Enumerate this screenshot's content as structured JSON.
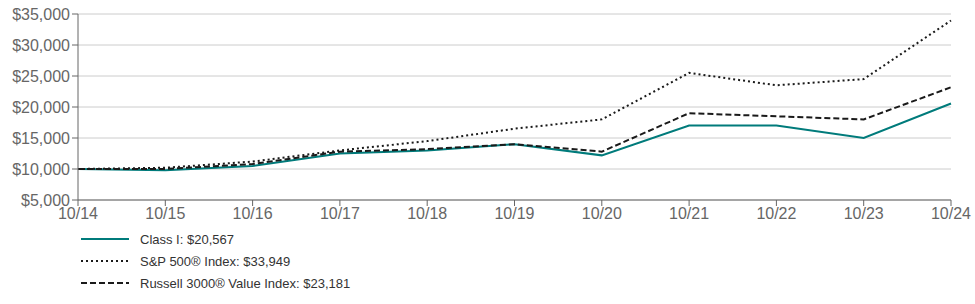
{
  "chart_data": {
    "type": "line",
    "categories": [
      "10/14",
      "10/15",
      "10/16",
      "10/17",
      "10/18",
      "10/19",
      "10/20",
      "10/21",
      "10/22",
      "10/23",
      "10/24"
    ],
    "series": [
      {
        "name": "Class I: $20,567",
        "color": "#007b7b",
        "line_style": "solid",
        "values": [
          10000,
          9800,
          10500,
          12500,
          13000,
          14000,
          12200,
          17000,
          17000,
          15000,
          20567
        ]
      },
      {
        "name": "S&P 500® Index: $33,949",
        "color": "#1a1a1a",
        "line_style": "dotted",
        "values": [
          10000,
          10200,
          11200,
          13000,
          14500,
          16500,
          18000,
          25500,
          23500,
          24500,
          33949
        ]
      },
      {
        "name": "Russell 3000® Value Index: $23,181",
        "color": "#1a1a1a",
        "line_style": "dashed",
        "values": [
          10000,
          10000,
          10800,
          12800,
          13200,
          14000,
          12800,
          19000,
          18500,
          18000,
          23181
        ]
      }
    ],
    "ylim": [
      5000,
      35000
    ],
    "yticks": [
      {
        "value": 5000,
        "label": "$5,000"
      },
      {
        "value": 10000,
        "label": "$10,000"
      },
      {
        "value": 15000,
        "label": "$15,000"
      },
      {
        "value": 20000,
        "label": "$20,000"
      },
      {
        "value": 25000,
        "label": "$25,000"
      },
      {
        "value": 30000,
        "label": "$30,000"
      },
      {
        "value": 35000,
        "label": "$35,000"
      }
    ],
    "grid": true,
    "legend": "bottom"
  }
}
